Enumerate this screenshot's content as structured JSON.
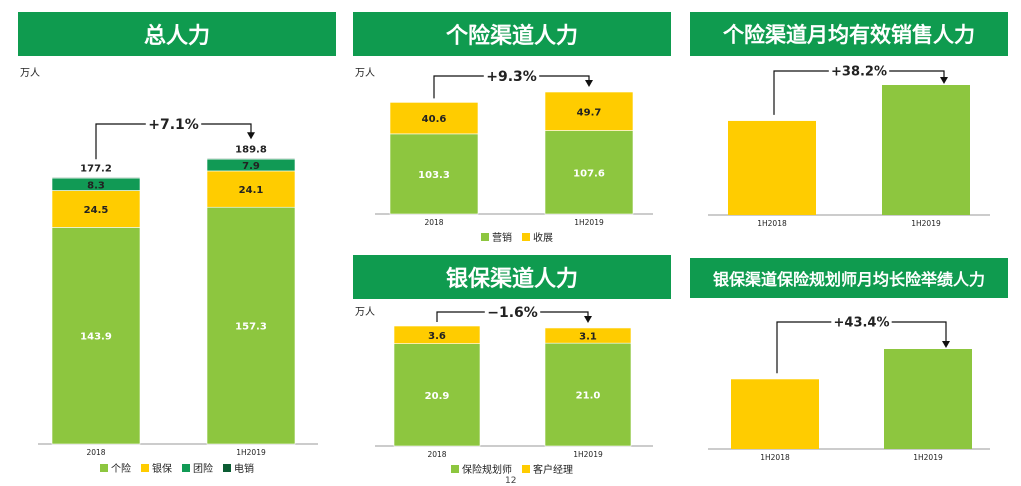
{
  "colors": {
    "header_bg": "#0f9b4f",
    "individual": "#8dc63f",
    "banca": "#ffcc00",
    "group": "#119a55",
    "telesales": "#0b5c33",
    "axis": "#999999"
  },
  "page_number": "12",
  "chart_data": [
    {
      "id": "total",
      "type": "bar",
      "stacked": true,
      "title": "总人力",
      "unit": "万人",
      "categories": [
        "2018",
        "1H2019"
      ],
      "series": [
        {
          "name": "个险",
          "values": [
            143.9,
            157.3
          ],
          "labels": [
            "143.9",
            "157.3"
          ]
        },
        {
          "name": "银保",
          "values": [
            24.5,
            24.1
          ],
          "labels": [
            "24.5",
            "24.1"
          ]
        },
        {
          "name": "团险",
          "values": [
            8.3,
            7.9
          ],
          "labels": [
            "8.3",
            "7.9"
          ]
        },
        {
          "name": "电销",
          "values": [
            0.5,
            0.5
          ],
          "labels": [
            "",
            ""
          ]
        }
      ],
      "totals": [
        "177.2",
        "189.8"
      ],
      "growth": "+7.1%",
      "ylim": [
        0,
        190
      ],
      "legend": "bottom"
    },
    {
      "id": "individual",
      "type": "bar",
      "stacked": true,
      "title": "个险渠道人力",
      "unit": "万人",
      "categories": [
        "2018",
        "1H2019"
      ],
      "series": [
        {
          "name": "营销",
          "values": [
            103.3,
            107.6
          ],
          "labels": [
            "103.3",
            "107.6"
          ]
        },
        {
          "name": "收展",
          "values": [
            40.6,
            49.7
          ],
          "labels": [
            "40.6",
            "49.7"
          ]
        }
      ],
      "growth": "+9.3%",
      "ylim": [
        0,
        157.3
      ],
      "legend": "bottom"
    },
    {
      "id": "individual_effective",
      "type": "bar",
      "title": "个险渠道月均有效销售人力",
      "categories": [
        "1H2018",
        "1H2019"
      ],
      "values": [
        1.0,
        1.382
      ],
      "growth": "+38.2%"
    },
    {
      "id": "banca",
      "type": "bar",
      "stacked": true,
      "title": "银保渠道人力",
      "unit": "万人",
      "categories": [
        "2018",
        "1H2019"
      ],
      "series": [
        {
          "name": "保险规划师",
          "values": [
            20.9,
            21.0
          ],
          "labels": [
            "20.9",
            "21.0"
          ]
        },
        {
          "name": "客户经理",
          "values": [
            3.6,
            3.1
          ],
          "labels": [
            "3.6",
            "3.1"
          ]
        }
      ],
      "growth": "−1.6%",
      "ylim": [
        0,
        24.5
      ],
      "legend": "bottom"
    },
    {
      "id": "banca_planner",
      "type": "bar",
      "title": "银保渠道保险规划师月均长险举绩人力",
      "categories": [
        "1H2018",
        "1H2019"
      ],
      "values": [
        1.0,
        1.434
      ],
      "growth": "+43.4%"
    }
  ]
}
